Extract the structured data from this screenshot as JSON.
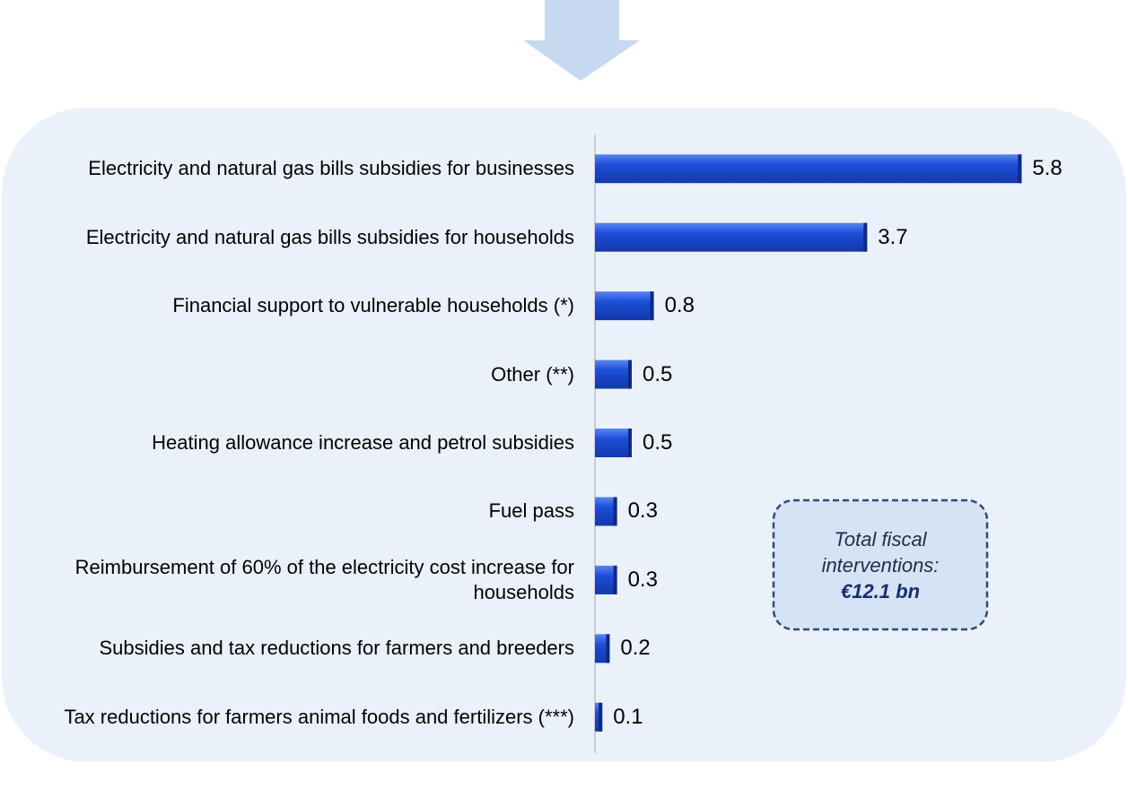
{
  "chart_data": {
    "type": "bar",
    "orientation": "horizontal",
    "categories": [
      "Electricity and natural gas bills subsidies for businesses",
      "Electricity and natural gas bills subsidies for households",
      "Financial support to vulnerable households (*)",
      "Other (**)",
      "Heating allowance increase and petrol subsidies",
      "Fuel pass",
      "Reimbursement of 60% of the electricity cost increase for households",
      "Subsidies and tax reductions for farmers and breeders",
      "Tax reductions for farmers animal foods and fertilizers (***)"
    ],
    "values": [
      5.8,
      3.7,
      0.8,
      0.5,
      0.5,
      0.3,
      0.3,
      0.2,
      0.1
    ],
    "color": "#1a4fd8",
    "xlim": [
      0,
      6.1
    ],
    "annotation": {
      "text": "Total fiscal interventions:",
      "total": "€12.1 bn"
    }
  }
}
